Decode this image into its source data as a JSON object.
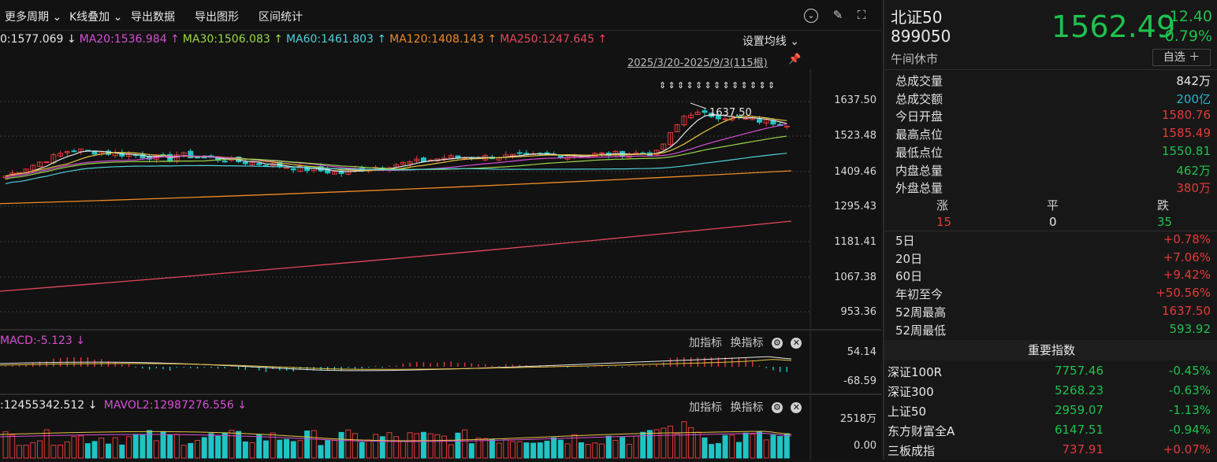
{
  "toolbar": {
    "period": "更多周期",
    "kline_overlay": "K线叠加",
    "export_data": "导出数据",
    "export_chart": "导出图形",
    "range_stats": "区间统计"
  },
  "ma_legend": [
    {
      "text": "0:1577.069 ↓",
      "color": "#e6e6e6"
    },
    {
      "text": "MA20:1536.984 ↑",
      "color": "#d64fd6"
    },
    {
      "text": "MA30:1506.083 ↑",
      "color": "#9bd84a"
    },
    {
      "text": "MA60:1461.803 ↑",
      "color": "#4fd0d8"
    },
    {
      "text": "MA120:1408.143 ↑",
      "color": "#f08a24"
    },
    {
      "text": "MA250:1247.645 ↑",
      "color": "#e5475a"
    }
  ],
  "set_ma": "设置均线",
  "date_range": "2025/3/20-2025/9/3(115根)",
  "peak_label": "1637.50",
  "y_axis": [
    "1637.50",
    "1523.48",
    "1409.46",
    "1295.43",
    "1181.41",
    "1067.38",
    "953.36"
  ],
  "macd": {
    "title": "MACD:-5.123 ↓",
    "add_indicator": "加指标",
    "switch_indicator": "换指标",
    "axis_top": "54.14",
    "axis_bottom": "-68.59"
  },
  "volume": {
    "title": ":12455342.512 ↓",
    "mavol2": "MAVOL2:12987276.556 ↓",
    "add_indicator": "加指标",
    "switch_indicator": "换指标",
    "axis_top": "2518万",
    "axis_bottom": "0.00"
  },
  "quote": {
    "name": "北证50",
    "code": "899050",
    "status": "午间休市",
    "price": "1562.49",
    "change": "-12.40",
    "change_pct": "-0.79%",
    "watchlist": "自选 ＋"
  },
  "stats": [
    {
      "label": "总成交量",
      "value": "842万",
      "cls": "c-wh"
    },
    {
      "label": "总成交额",
      "value": "200亿",
      "cls": "c-cy"
    },
    {
      "label": "今日开盘",
      "value": "1580.76",
      "cls": "c-up"
    },
    {
      "label": "最高点位",
      "value": "1585.49",
      "cls": "c-up"
    },
    {
      "label": "最低点位",
      "value": "1550.81",
      "cls": "c-dn"
    },
    {
      "label": "内盘总量",
      "value": "462万",
      "cls": "c-dn"
    },
    {
      "label": "外盘总量",
      "value": "380万",
      "cls": "c-up"
    }
  ],
  "breadth": {
    "up_label": "涨",
    "flat_label": "平",
    "down_label": "跌",
    "up": "15",
    "flat": "0",
    "down": "35"
  },
  "returns": [
    {
      "label": "5日",
      "value": "+0.78%",
      "cls": "c-up"
    },
    {
      "label": "20日",
      "value": "+7.06%",
      "cls": "c-up"
    },
    {
      "label": "60日",
      "value": "+9.42%",
      "cls": "c-up"
    },
    {
      "label": "年初至今",
      "value": "+50.56%",
      "cls": "c-up"
    },
    {
      "label": "52周最高",
      "value": "1637.50",
      "cls": "c-up"
    },
    {
      "label": "52周最低",
      "value": "593.92",
      "cls": "c-dn"
    }
  ],
  "indices_title": "重要指数",
  "indices": [
    {
      "name": "深证100R",
      "price": "7757.46",
      "change": "-0.45%",
      "pcls": "c-dn",
      "ccls": "c-dn"
    },
    {
      "name": "深证300",
      "price": "5268.23",
      "change": "-0.63%",
      "pcls": "c-dn",
      "ccls": "c-dn"
    },
    {
      "name": "上证50",
      "price": "2959.07",
      "change": "-1.13%",
      "pcls": "c-dn",
      "ccls": "c-dn"
    },
    {
      "name": "东方财富全A",
      "price": "6147.51",
      "change": "-0.94%",
      "pcls": "c-dn",
      "ccls": "c-dn"
    },
    {
      "name": "三板成指",
      "price": "737.91",
      "change": "+0.07%",
      "pcls": "c-up",
      "ccls": "c-up"
    }
  ],
  "chart_data": {
    "type": "candlestick",
    "ylim": [
      953.36,
      1637.5
    ],
    "visible_range": "2025/3/20-2025/9/3",
    "bars": 115,
    "last_close": 1562.49,
    "ma_values": {
      "MA20": 1536.984,
      "MA30": 1506.083,
      "MA60": 1461.803,
      "MA120": 1408.143,
      "MA250": 1247.645
    },
    "colors": {
      "up": "#e23a3a",
      "down": "#20c4c4"
    }
  }
}
